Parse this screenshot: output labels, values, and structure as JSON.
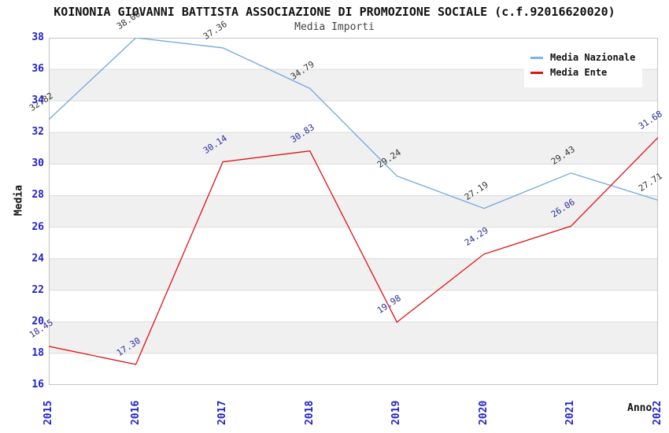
{
  "title": "KOINONIA GIOVANNI BATTISTA ASSOCIAZIONE DI PROMOZIONE SOCIALE (c.f.92016620020)",
  "subtitle": "Media Importi",
  "legend": [
    {
      "label": "Media Nazionale",
      "color": "#7fb2e5"
    },
    {
      "label": "Media Ente",
      "color": "#e01212"
    }
  ],
  "chart_data": {
    "type": "line",
    "x_labels": [
      "2015",
      "2016",
      "2017",
      "2018",
      "2019",
      "2020",
      "2021",
      "2022"
    ],
    "series": [
      {
        "name": "Media Nazionale",
        "color": "#6fa8e0",
        "label_color": "#333333",
        "values": [
          32.82,
          38.0,
          37.36,
          34.79,
          29.24,
          27.19,
          29.43,
          27.71
        ]
      },
      {
        "name": "Media Ente",
        "color": "#e01212",
        "label_color": "#2b2b9e",
        "values": [
          18.45,
          17.3,
          30.14,
          30.83,
          19.98,
          24.29,
          26.06,
          31.68
        ]
      }
    ],
    "xlabel": "Anno",
    "ylabel": "Media",
    "ylim": [
      16,
      38
    ],
    "ytick_step": 2,
    "grid": true,
    "legend_position": "top-right",
    "band_colors": [
      "#ffffff",
      "#f0f0f0"
    ],
    "gridline_color": "#dcdcdc",
    "plot_border_color": "#c4c4c4",
    "tick_label_color": "#2222cc"
  }
}
